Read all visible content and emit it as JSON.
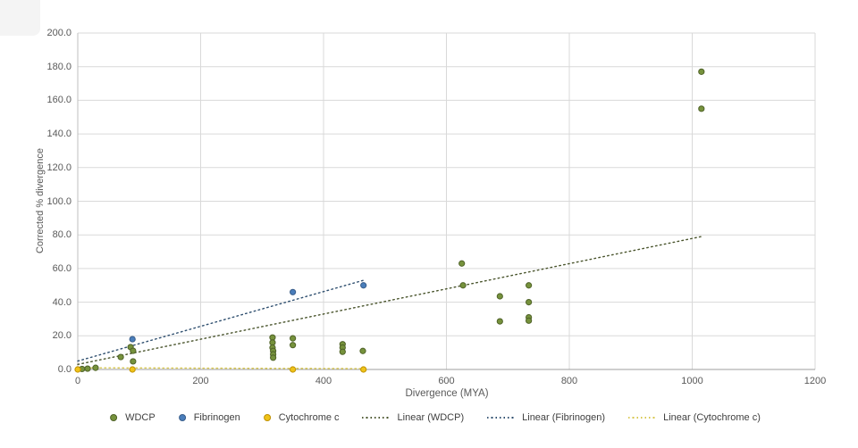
{
  "chart_data": {
    "type": "scatter",
    "title": "",
    "xlabel": "Divergence (MYA)",
    "ylabel": "Corrected % divergence",
    "xlim": [
      0,
      1200
    ],
    "ylim": [
      0,
      200
    ],
    "grid": "both",
    "grid_color": "#d9d9d9",
    "axis_color": "#bfbfbf",
    "x_axis_color": "#9d9d9d",
    "x_ticks": [
      0,
      200,
      400,
      600,
      800,
      1000,
      1200
    ],
    "x_tick_labels": [
      "0",
      "200",
      "400",
      "600",
      "800",
      "1000",
      "1200"
    ],
    "y_ticks": [
      0,
      20,
      40,
      60,
      80,
      100,
      120,
      140,
      160,
      180,
      200
    ],
    "y_tick_labels": [
      "0.0",
      "20.0",
      "40.0",
      "60.0",
      "80.0",
      "100.0",
      "120.0",
      "140.0",
      "160.0",
      "180.0",
      "200.0"
    ],
    "series": [
      {
        "name": "WDCP",
        "color": "#76923C",
        "border": "#4F6228",
        "points": [
          [
            7,
            0.3
          ],
          [
            16,
            0.5
          ],
          [
            29,
            1
          ],
          [
            70,
            7.4
          ],
          [
            86,
            13.3
          ],
          [
            90,
            11.1
          ],
          [
            90,
            4.8
          ],
          [
            317,
            19
          ],
          [
            317,
            16
          ],
          [
            317,
            13
          ],
          [
            318,
            11
          ],
          [
            318,
            9
          ],
          [
            318,
            7
          ],
          [
            350,
            18.5
          ],
          [
            350,
            14.5
          ],
          [
            431,
            15
          ],
          [
            431,
            13
          ],
          [
            431,
            10.5
          ],
          [
            464,
            11
          ],
          [
            625,
            63
          ],
          [
            627,
            50
          ],
          [
            687,
            43.5
          ],
          [
            687,
            28.6
          ],
          [
            734,
            50
          ],
          [
            734,
            40
          ],
          [
            734,
            31
          ],
          [
            734,
            29
          ],
          [
            1015,
            177
          ],
          [
            1015,
            155
          ]
        ]
      },
      {
        "name": "Fibrinogen",
        "color": "#4A7EBB",
        "border": "#385D8A",
        "points": [
          [
            89,
            18
          ],
          [
            350,
            46
          ],
          [
            465,
            50
          ]
        ]
      },
      {
        "name": "Cytochrome c",
        "color": "#EFC319",
        "border": "#BF9000",
        "points": [
          [
            0,
            0
          ],
          [
            89,
            0
          ],
          [
            350,
            0
          ],
          [
            465,
            0
          ]
        ]
      }
    ],
    "trendlines": [
      {
        "name": "Linear (WDCP)",
        "color": "#49542C",
        "from": [
          0,
          3
        ],
        "to": [
          1015,
          79
        ]
      },
      {
        "name": "Linear (Fibrinogen)",
        "color": "#2F4F6F",
        "from": [
          0,
          5
        ],
        "to": [
          465,
          53
        ]
      },
      {
        "name": "Linear (Cytochrome c)",
        "color": "#D8C74F",
        "from": [
          0,
          1
        ],
        "to": [
          465,
          0.5
        ]
      }
    ],
    "legend": {
      "position": "bottom",
      "items": [
        {
          "label": "WDCP",
          "marker": "dot",
          "color": "#76923C",
          "border": "#4F6228"
        },
        {
          "label": "Fibrinogen",
          "marker": "dot",
          "color": "#4A7EBB",
          "border": "#385D8A"
        },
        {
          "label": "Cytochrome c",
          "marker": "dot",
          "color": "#EFC319",
          "border": "#BF9000"
        },
        {
          "label": "Linear (WDCP)",
          "marker": "dotted-line",
          "color": "#49542C"
        },
        {
          "label": "Linear (Fibrinogen)",
          "marker": "dotted-line",
          "color": "#2F4F6F"
        },
        {
          "label": "Linear (Cytochrome c)",
          "marker": "dotted-line",
          "color": "#D8C74F"
        }
      ]
    }
  }
}
